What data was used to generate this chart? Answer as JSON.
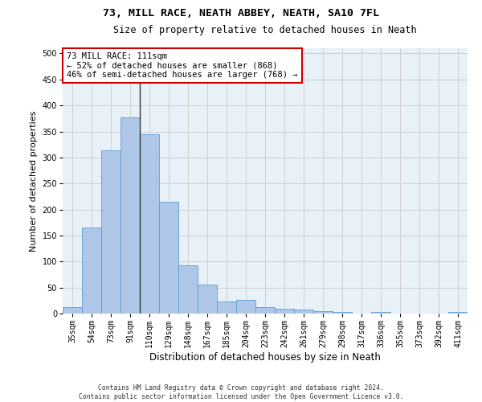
{
  "title": "73, MILL RACE, NEATH ABBEY, NEATH, SA10 7FL",
  "subtitle": "Size of property relative to detached houses in Neath",
  "xlabel": "Distribution of detached houses by size in Neath",
  "ylabel": "Number of detached properties",
  "categories": [
    "35sqm",
    "54sqm",
    "73sqm",
    "91sqm",
    "110sqm",
    "129sqm",
    "148sqm",
    "167sqm",
    "185sqm",
    "204sqm",
    "223sqm",
    "242sqm",
    "261sqm",
    "279sqm",
    "298sqm",
    "317sqm",
    "336sqm",
    "355sqm",
    "373sqm",
    "392sqm",
    "411sqm"
  ],
  "values": [
    13,
    165,
    313,
    377,
    345,
    215,
    93,
    55,
    23,
    27,
    13,
    10,
    8,
    5,
    3,
    0,
    3,
    0,
    0,
    0,
    3
  ],
  "bar_color": "#aec6e8",
  "bar_edge_color": "#5a9fd4",
  "property_line_index": 4,
  "property_line_color": "#333333",
  "annotation_text": "73 MILL RACE: 111sqm\n← 52% of detached houses are smaller (868)\n46% of semi-detached houses are larger (768) →",
  "annotation_box_color": "#ffffff",
  "annotation_box_edge": "#cc0000",
  "ylim": [
    0,
    510
  ],
  "yticks": [
    0,
    50,
    100,
    150,
    200,
    250,
    300,
    350,
    400,
    450,
    500
  ],
  "footer": "Contains HM Land Registry data © Crown copyright and database right 2024.\nContains public sector information licensed under the Open Government Licence v3.0.",
  "bg_color": "#ffffff",
  "grid_color": "#cccccc",
  "title_fontsize": 9.5,
  "subtitle_fontsize": 8.5,
  "xlabel_fontsize": 8.5,
  "ylabel_fontsize": 8,
  "footer_fontsize": 5.8,
  "tick_fontsize": 7,
  "annot_fontsize": 7.5
}
